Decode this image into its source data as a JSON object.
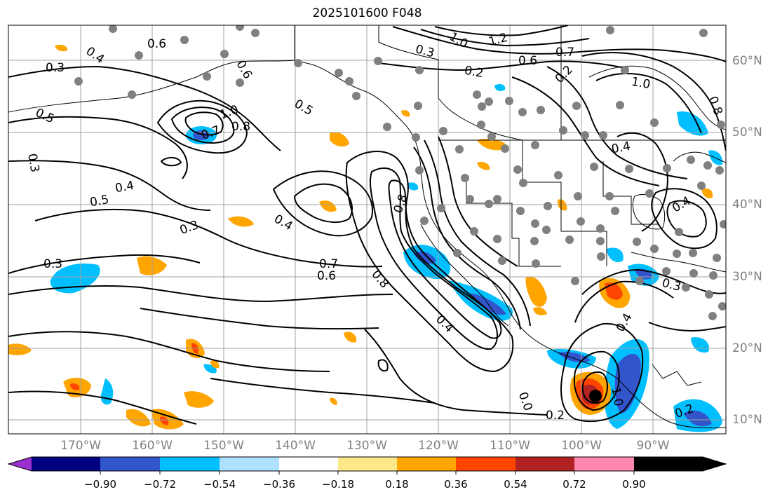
{
  "title": "2025101600 F048",
  "lon_ticks": [
    "170°W",
    "160°W",
    "150°W",
    "140°W",
    "130°W",
    "120°W",
    "110°W",
    "100°W",
    "90°W"
  ],
  "lat_ticks": [
    "60°N",
    "50°N",
    "40°N",
    "30°N",
    "20°N",
    "10°N"
  ],
  "colorbar": {
    "labels": [
      "−0.90",
      "−0.72",
      "−0.54",
      "−0.36",
      "−0.18",
      "0.18",
      "0.36",
      "0.54",
      "0.72",
      "0.90"
    ],
    "colors": [
      "#9b30d0",
      "#000080",
      "#3355cc",
      "#00bfff",
      "#aee0ff",
      "#ffffff",
      "#fee88a",
      "#ffa500",
      "#ff4500",
      "#b22222",
      "#ff88b0"
    ]
  },
  "contour_labels": [
    {
      "text": "0.3"
    },
    {
      "text": "0.4"
    },
    {
      "text": "0.6"
    },
    {
      "text": "0.5"
    },
    {
      "text": "0.3"
    },
    {
      "text": "0.6"
    },
    {
      "text": "0.8"
    },
    {
      "text": "1.0"
    },
    {
      "text": "0.7"
    },
    {
      "text": "0.5"
    },
    {
      "text": "0.4"
    },
    {
      "text": "0.5"
    },
    {
      "text": "0.3"
    },
    {
      "text": "0.3"
    },
    {
      "text": "0.4"
    },
    {
      "text": "0.7"
    },
    {
      "text": "0.6"
    },
    {
      "text": "0.8"
    },
    {
      "text": "0.8"
    },
    {
      "text": "0.4"
    },
    {
      "text": "0.2"
    },
    {
      "text": "0.3"
    },
    {
      "text": "1.0"
    },
    {
      "text": "1.2"
    },
    {
      "text": "0.6"
    },
    {
      "text": "0.7"
    },
    {
      "text": "0.2"
    },
    {
      "text": "1.0"
    },
    {
      "text": "0.8"
    },
    {
      "text": "0.4"
    },
    {
      "text": "0.4"
    },
    {
      "text": "0.3"
    },
    {
      "text": "0.4"
    },
    {
      "text": "1.0"
    },
    {
      "text": "0.2"
    },
    {
      "text": "0.2"
    },
    {
      "text": "0.0"
    }
  ]
}
